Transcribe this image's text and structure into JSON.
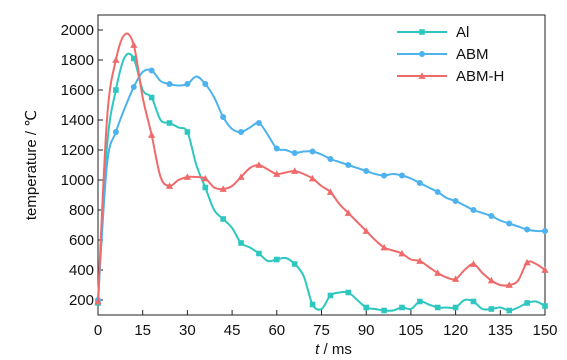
{
  "chart_data": {
    "type": "line",
    "title": "",
    "xlabel_italic": "t",
    "xlabel_unit": " / ms",
    "ylabel": "temperature / ℃",
    "xlim": [
      0,
      150
    ],
    "ylim": [
      100,
      2100
    ],
    "xticks": [
      0,
      15,
      30,
      45,
      60,
      75,
      90,
      105,
      120,
      135,
      150
    ],
    "yticks": [
      200,
      400,
      600,
      800,
      1000,
      1200,
      1400,
      1600,
      1800,
      2000
    ],
    "grid": false,
    "legend_position": "top-right",
    "series": [
      {
        "name": "Al",
        "color": "#2ec7c0",
        "marker": "square",
        "x": [
          0,
          3,
          6,
          9,
          12,
          15,
          18,
          21,
          24,
          27,
          30,
          33,
          36,
          39,
          42,
          45,
          48,
          51,
          54,
          57,
          60,
          63,
          66,
          69,
          72,
          75,
          78,
          81,
          84,
          87,
          90,
          93,
          96,
          99,
          102,
          105,
          108,
          111,
          114,
          117,
          120,
          123,
          126,
          129,
          132,
          135,
          138,
          141,
          144,
          147,
          150
        ],
        "y": [
          180,
          1220,
          1600,
          1820,
          1810,
          1600,
          1550,
          1400,
          1380,
          1350,
          1320,
          1100,
          950,
          800,
          740,
          680,
          580,
          550,
          510,
          460,
          470,
          480,
          440,
          360,
          170,
          140,
          230,
          250,
          250,
          200,
          150,
          140,
          130,
          130,
          150,
          140,
          190,
          170,
          150,
          150,
          150,
          200,
          190,
          140,
          140,
          150,
          130,
          150,
          180,
          190,
          160
        ]
      },
      {
        "name": "ABM",
        "color": "#4db2ee",
        "marker": "circle",
        "x": [
          0,
          3,
          6,
          9,
          12,
          15,
          18,
          21,
          24,
          27,
          30,
          33,
          36,
          39,
          42,
          45,
          48,
          51,
          54,
          57,
          60,
          63,
          66,
          69,
          72,
          75,
          78,
          81,
          84,
          87,
          90,
          93,
          96,
          99,
          102,
          105,
          108,
          111,
          114,
          117,
          120,
          123,
          126,
          129,
          132,
          135,
          138,
          141,
          144,
          147,
          150
        ],
        "y": [
          200,
          1100,
          1320,
          1480,
          1620,
          1720,
          1730,
          1660,
          1640,
          1630,
          1640,
          1690,
          1640,
          1550,
          1420,
          1340,
          1320,
          1350,
          1380,
          1300,
          1210,
          1200,
          1180,
          1190,
          1190,
          1170,
          1140,
          1120,
          1100,
          1080,
          1060,
          1040,
          1030,
          1040,
          1030,
          1010,
          980,
          950,
          920,
          880,
          860,
          830,
          800,
          780,
          760,
          730,
          710,
          690,
          670,
          660,
          660
        ]
      },
      {
        "name": "ABM-H",
        "color": "#ef6b6b",
        "marker": "triangle",
        "x": [
          0,
          3,
          6,
          9,
          12,
          15,
          18,
          21,
          24,
          27,
          30,
          33,
          36,
          39,
          42,
          45,
          48,
          51,
          54,
          57,
          60,
          63,
          66,
          69,
          72,
          75,
          78,
          81,
          84,
          87,
          90,
          93,
          96,
          99,
          102,
          105,
          108,
          111,
          114,
          117,
          120,
          123,
          126,
          129,
          132,
          135,
          138,
          141,
          144,
          147,
          150
        ],
        "y": [
          190,
          1400,
          1800,
          1970,
          1900,
          1550,
          1300,
          1020,
          960,
          1000,
          1020,
          1020,
          1010,
          950,
          940,
          960,
          1020,
          1080,
          1100,
          1070,
          1040,
          1050,
          1060,
          1040,
          1010,
          960,
          920,
          840,
          780,
          720,
          660,
          600,
          550,
          530,
          510,
          470,
          460,
          420,
          380,
          350,
          340,
          400,
          440,
          380,
          330,
          300,
          300,
          330,
          450,
          440,
          400
        ]
      }
    ]
  }
}
